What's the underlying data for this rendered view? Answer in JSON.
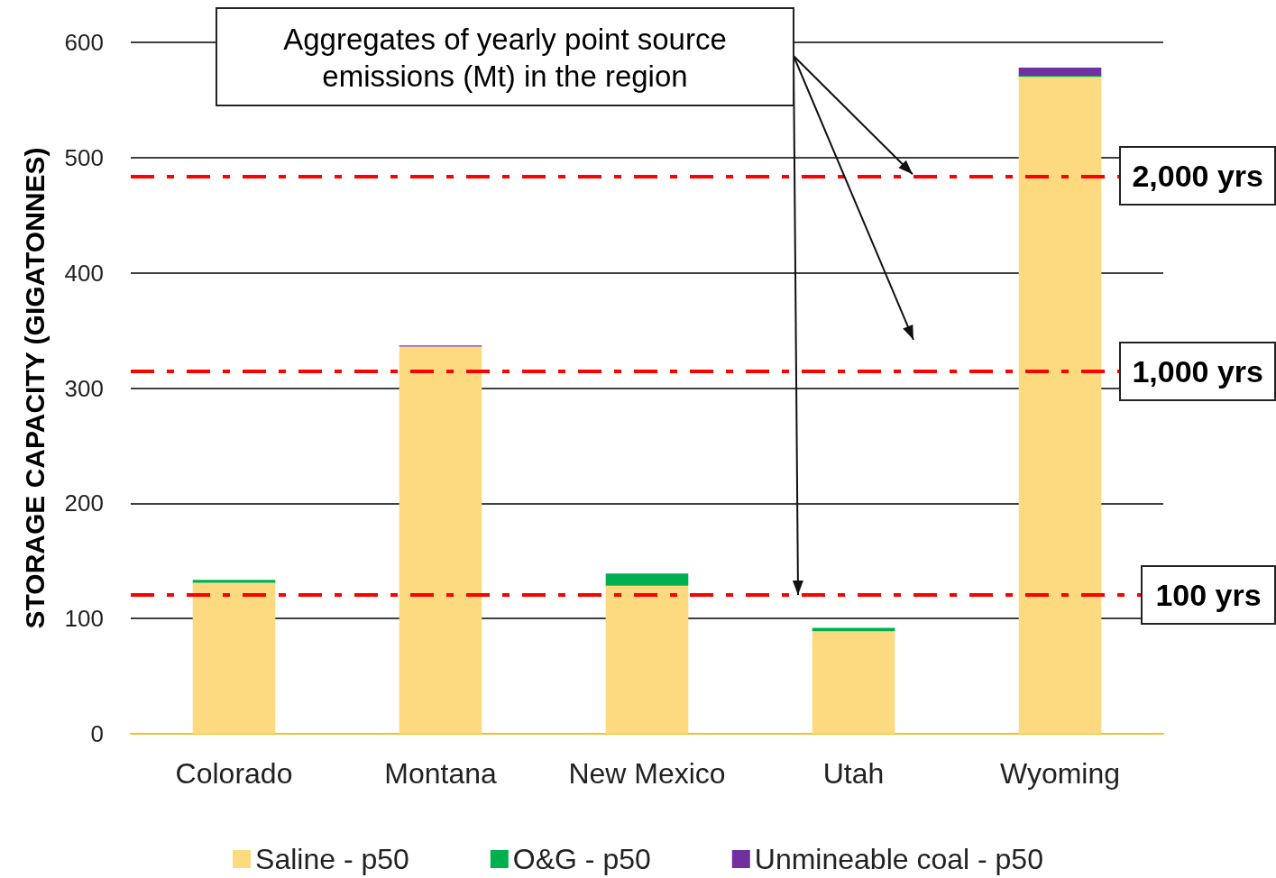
{
  "chart_data": {
    "type": "bar",
    "stacked": true,
    "ylabel": "STORAGE CAPACITY (GIGATONNES)",
    "categories": [
      "Colorado",
      "Montana",
      "New Mexico",
      "Utah",
      "Wyoming"
    ],
    "series": [
      {
        "name": "Saline - p50",
        "color": "#fdda7f",
        "values": [
          131,
          336,
          128.5,
          89,
          570
        ]
      },
      {
        "name": "O&G - p50",
        "color": "#00b050",
        "values": [
          2.5,
          0,
          10.5,
          3,
          1
        ]
      },
      {
        "name": "Unmineable coal - p50",
        "color": "#7030a0",
        "values": [
          0,
          1,
          0,
          0,
          7
        ]
      }
    ],
    "ylim": [
      0,
      600
    ],
    "yticks": [
      0,
      100,
      200,
      300,
      400,
      500,
      600
    ],
    "grid": "y",
    "legend": "bottom",
    "ref_lines": [
      {
        "axis": "y",
        "value": 484,
        "label": "2,000 yrs",
        "color": "#ff0000",
        "line_style": "dashdot"
      },
      {
        "axis": "y",
        "value": 314.5,
        "label": "1,000 yrs",
        "color": "#ff0000",
        "line_style": "dashdot"
      },
      {
        "axis": "y",
        "value": 120.5,
        "label": "100 yrs",
        "color": "#ff0000",
        "line_style": "dashdot"
      }
    ],
    "annotations": [
      "Aggregates of yearly point source emissions (Mt) in the region"
    ]
  }
}
